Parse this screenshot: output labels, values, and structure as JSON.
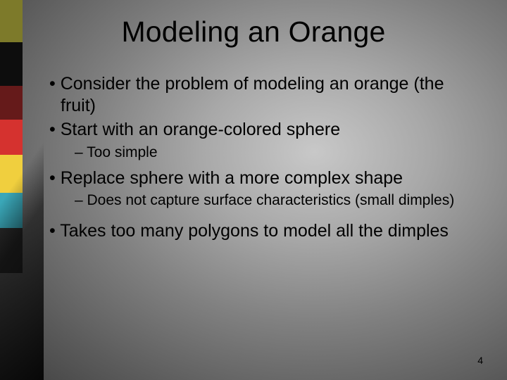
{
  "slide": {
    "title": "Modeling an Orange",
    "page_number": "4"
  },
  "bullets": {
    "b1": "Consider the problem of modeling an orange (the fruit)",
    "b2": "Start with an orange-colored sphere",
    "b2_1": "Too simple",
    "b3": "Replace sphere with a more complex shape",
    "b3_1": "Does not capture surface characteristics (small dimples)",
    "b4": "Takes too many polygons to model all the dimples"
  },
  "accent_colors": {
    "olive": "#7d7a2a",
    "black": "#0d0d0d",
    "darkred": "#651a1a",
    "red": "#d5322f",
    "yellow": "#f0cf3e",
    "teal": "#3aa7b8",
    "charcoal": "#2a2a2a"
  }
}
